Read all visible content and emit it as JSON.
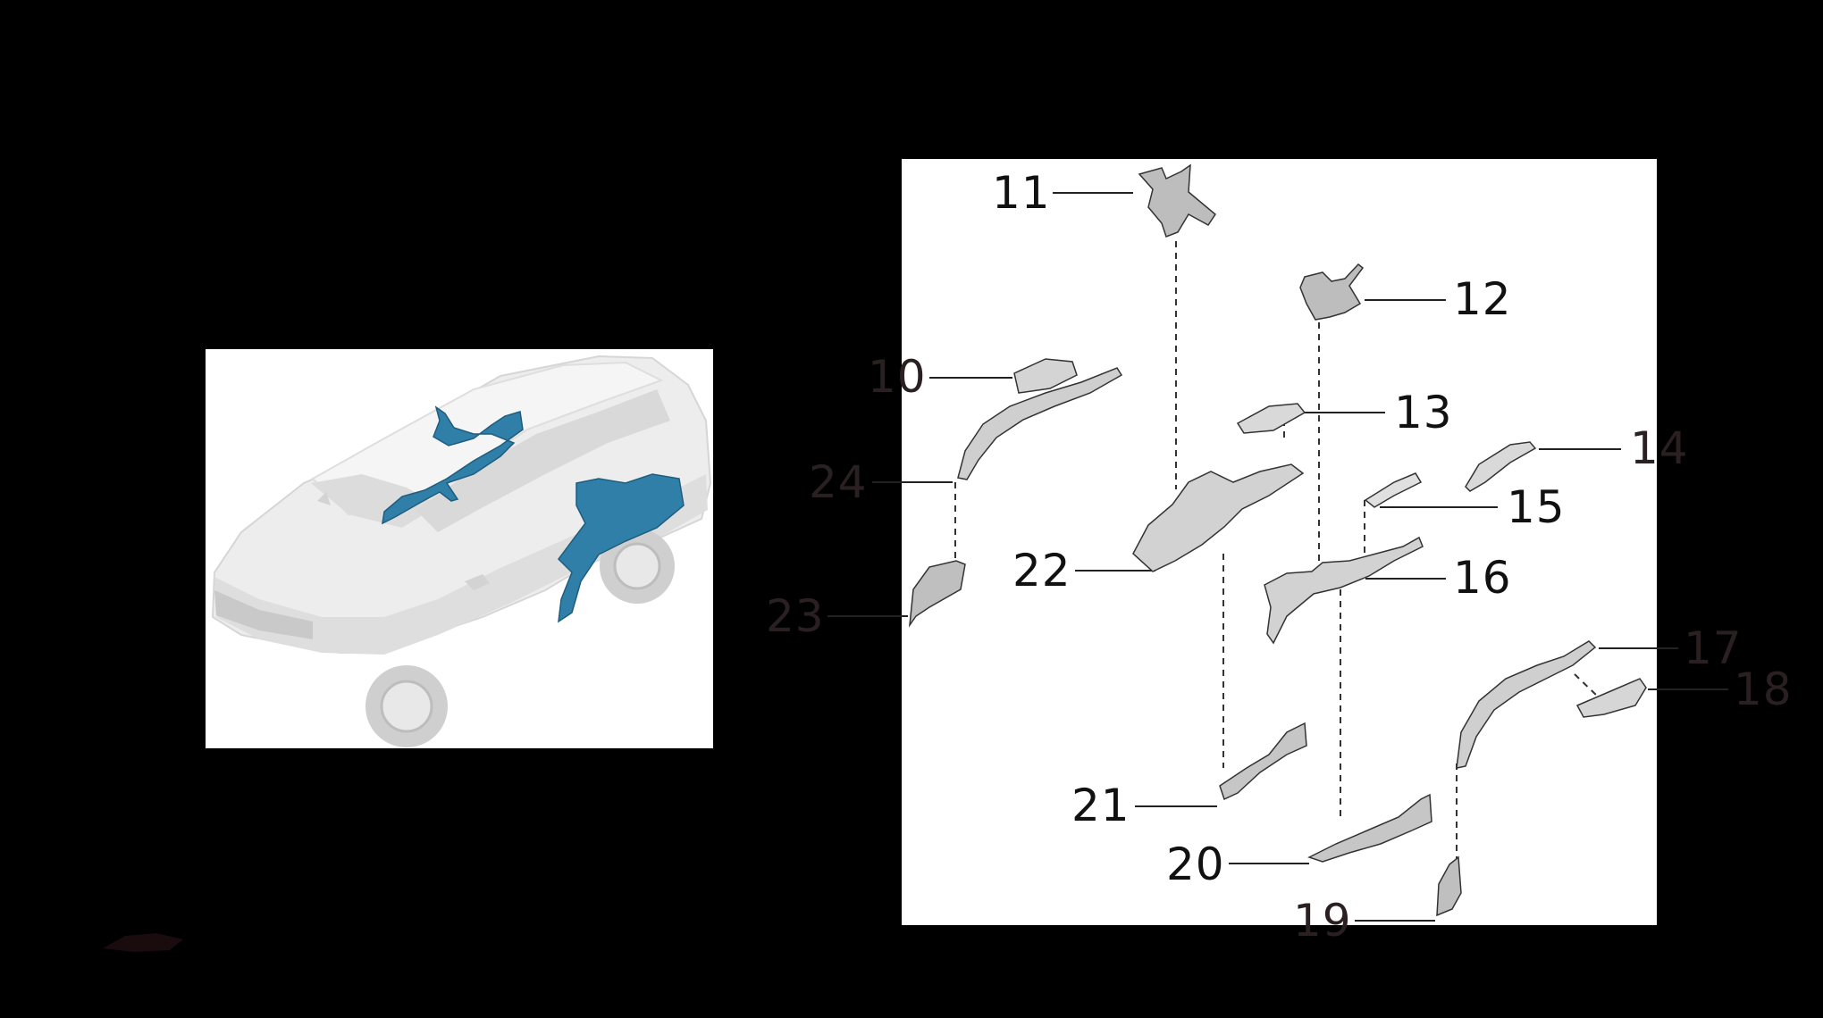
{
  "callouts": [
    {
      "id": "10",
      "label": "10"
    },
    {
      "id": "11",
      "label": "11"
    },
    {
      "id": "12",
      "label": "12"
    },
    {
      "id": "13",
      "label": "13"
    },
    {
      "id": "14",
      "label": "14"
    },
    {
      "id": "15",
      "label": "15"
    },
    {
      "id": "16",
      "label": "16"
    },
    {
      "id": "17",
      "label": "17"
    },
    {
      "id": "18",
      "label": "18"
    },
    {
      "id": "19",
      "label": "19"
    },
    {
      "id": "20",
      "label": "20"
    },
    {
      "id": "21",
      "label": "21"
    },
    {
      "id": "22",
      "label": "22"
    },
    {
      "id": "23",
      "label": "23"
    },
    {
      "id": "24",
      "label": "24"
    }
  ],
  "colors": {
    "background": "#000000",
    "panel": "#ffffff",
    "highlight": "#2f7fa8",
    "part_stroke": "#333333",
    "car_body": "#e6e6e6"
  },
  "icons": {
    "car": "suv-body-isometric-icon",
    "watermark": "logo-mark-icon"
  }
}
